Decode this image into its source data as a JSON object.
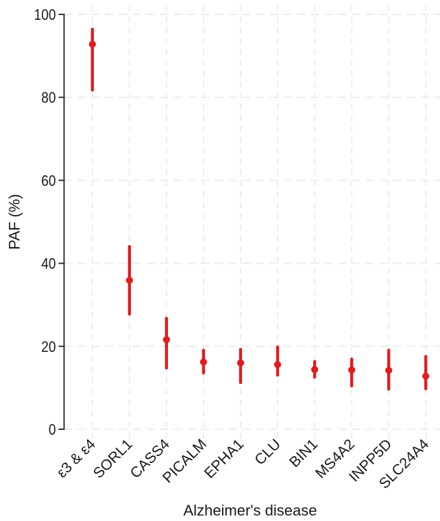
{
  "chart_data": {
    "type": "scatter",
    "subtype": "pointrange",
    "title": "",
    "xlabel": "Alzheimer's disease",
    "ylabel": "PAF (%)",
    "ylim": [
      0,
      100
    ],
    "yticks": [
      0,
      20,
      40,
      60,
      80,
      100
    ],
    "grid": "dashed",
    "legend": "none",
    "categories": [
      "ε3 & ε4",
      "SORL1",
      "CASS4",
      "PICALM",
      "EPHA1",
      "CLU",
      "BIN1",
      "MS4A2",
      "INPP5D",
      "SLC24A4"
    ],
    "series": [
      {
        "name": "PAF",
        "values": [
          92.8,
          35.9,
          21.6,
          16.2,
          16.0,
          15.6,
          14.4,
          14.3,
          14.2,
          12.8
        ],
        "lower": [
          81.4,
          27.4,
          14.4,
          13.2,
          10.9,
          12.7,
          12.2,
          10.1,
          9.3,
          9.4
        ],
        "upper": [
          96.8,
          44.4,
          27.1,
          19.4,
          19.6,
          20.2,
          16.7,
          17.3,
          19.4,
          17.9
        ]
      }
    ],
    "colors": {
      "point": "#e41a1c",
      "grid": "#ececec",
      "axis": "#333333",
      "text": "#1a1a1a"
    }
  }
}
